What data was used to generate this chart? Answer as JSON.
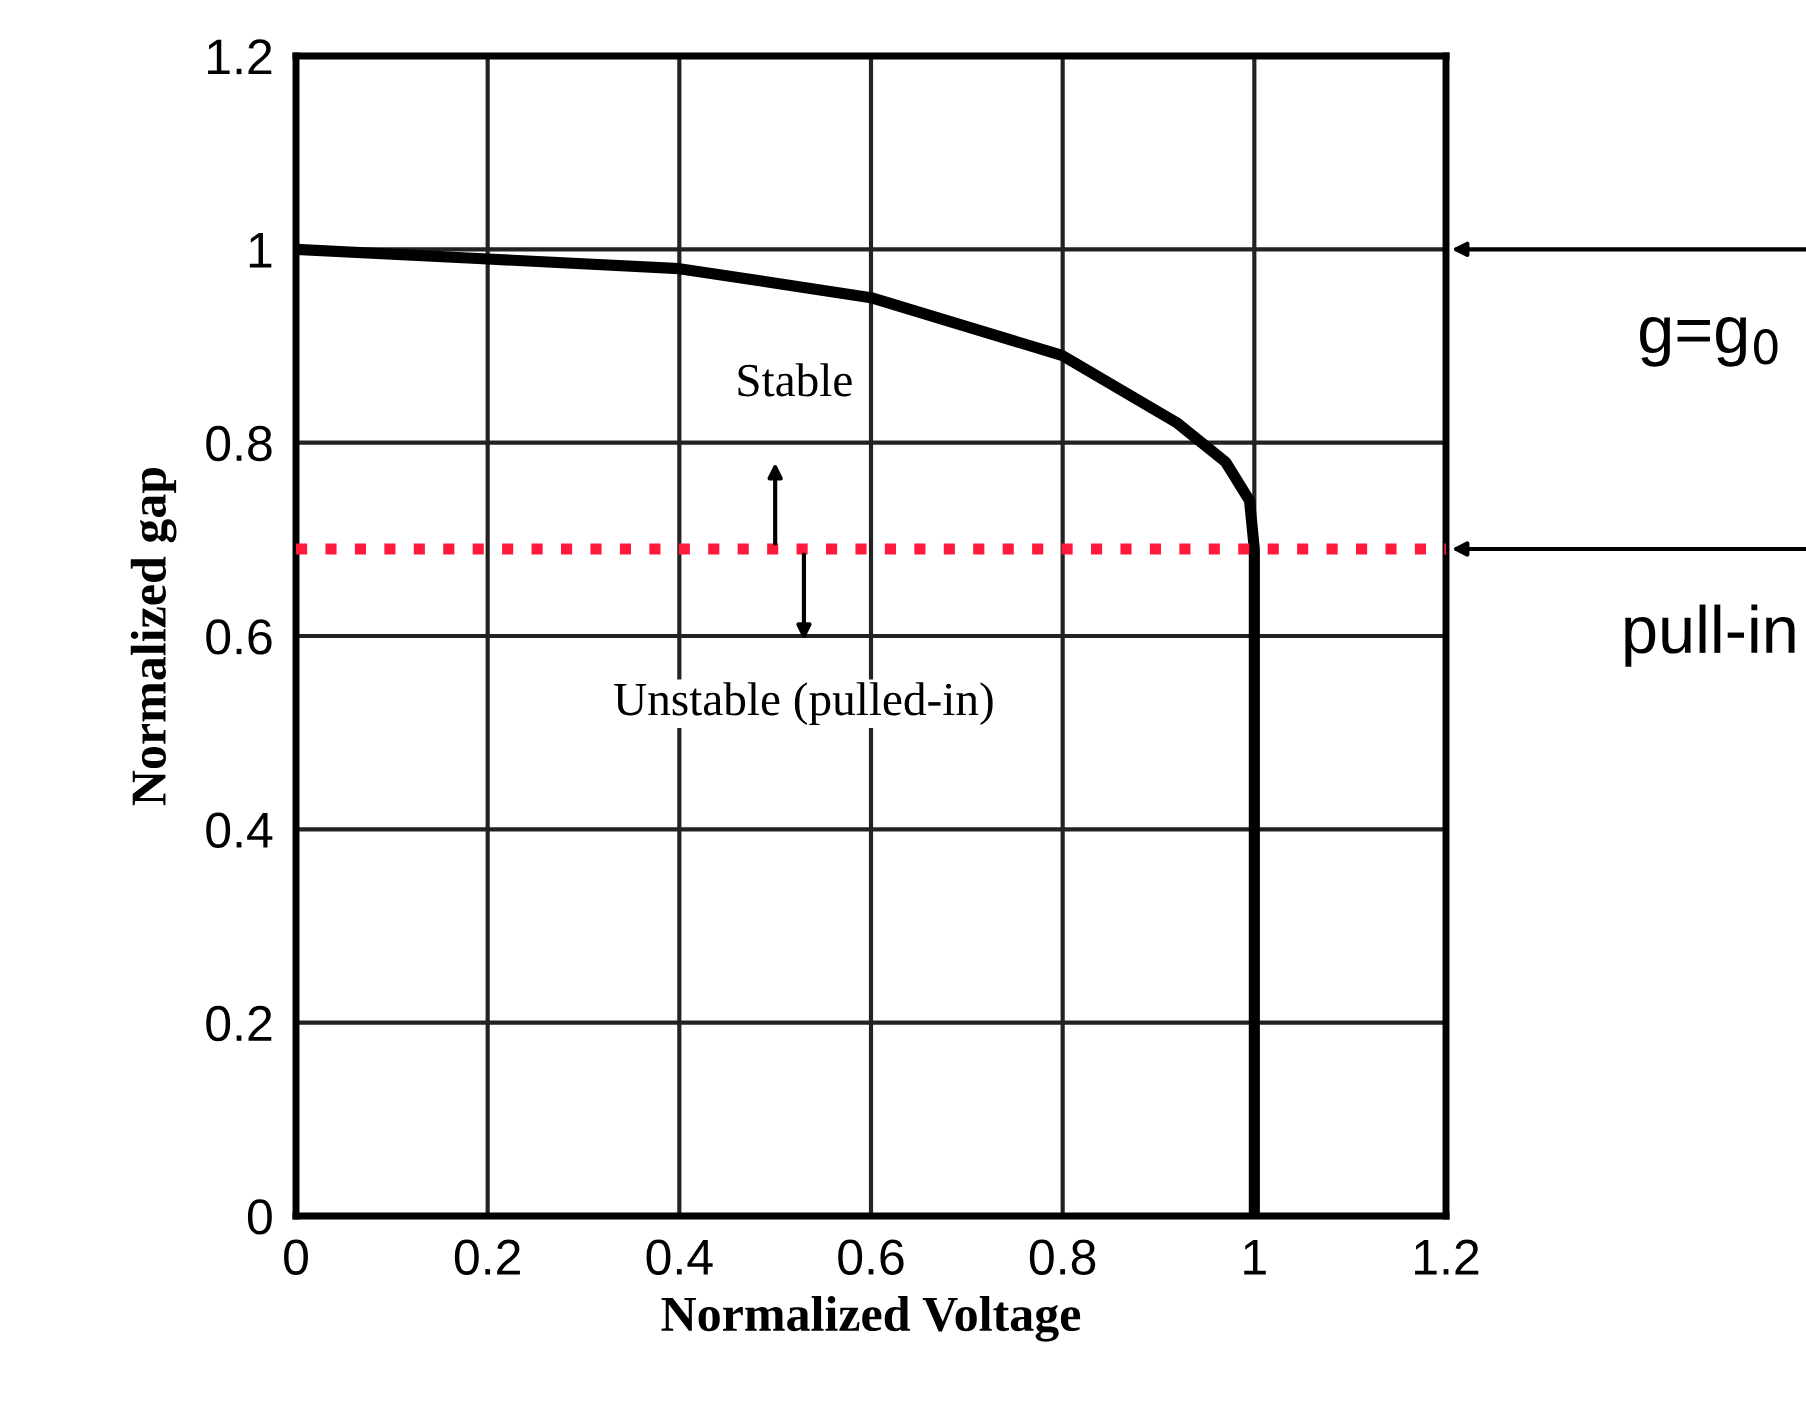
{
  "chart_data": {
    "type": "line",
    "xlabel": "Normalized Voltage",
    "ylabel": "Normalized gap",
    "x": [
      0,
      0.2,
      0.4,
      0.6,
      0.8,
      0.92,
      0.97,
      0.995,
      1,
      1
    ],
    "series": [
      {
        "color": "#000000",
        "values": [
          1,
          0.99,
          0.98,
          0.95,
          0.89,
          0.82,
          0.78,
          0.74,
          0.69,
          0
        ]
      }
    ],
    "xlim": [
      0,
      1.2
    ],
    "xticks": [
      0,
      0.2,
      0.4,
      0.6,
      0.8,
      1,
      1.2
    ],
    "ylim": [
      0,
      1.2
    ],
    "yticks": [
      0,
      0.2,
      0.4,
      0.6,
      0.8,
      1,
      1.2
    ],
    "grid": true,
    "marker": "none",
    "line_style": "solid",
    "ref_lines": [
      {
        "axis": "y",
        "value": 0.69,
        "color": "#ff1a3c",
        "line_style": "dotted"
      }
    ],
    "annotations": [
      "Stable",
      "Unstable (pulled-in)",
      "g=g$_{0}$",
      {
        "text": "pull-in",
        "x": 1.2,
        "y": 0.69
      }
    ]
  }
}
